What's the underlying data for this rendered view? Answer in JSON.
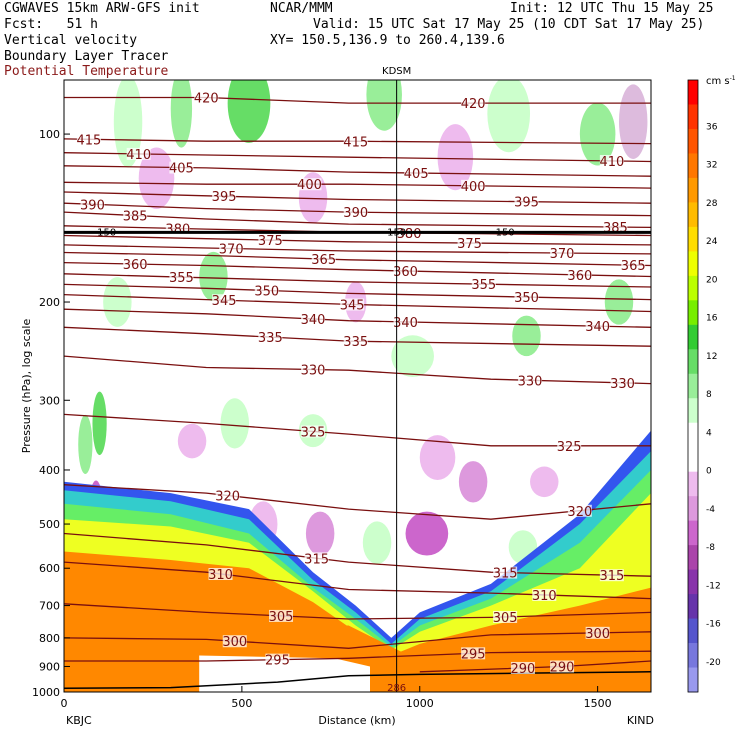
{
  "header": {
    "model": "CGWAVES 15km ARW-GFS init",
    "center": "NCAR/MMM",
    "init": "Init: 12 UTC Thu 15 May 25",
    "fcst": "Fcst:   51 h",
    "valid": "Valid: 15 UTC Sat 17 May 25 (10 CDT Sat 17 May 25)",
    "field1": "Vertical velocity",
    "field2": "Boundary Layer Tracer",
    "field3": "Potential Temperature",
    "xy": "XY= 150.5,136.9 to 260.4,139.6"
  },
  "colors": {
    "theta": "#7a0f0f",
    "bl_tracer": "#ff8c00"
  },
  "chart_data": {
    "type": "heatmap",
    "title": "",
    "xlabel": "Distance (km)",
    "ylabel": "Pressure (hPa), log scale",
    "xlim": [
      0,
      1650
    ],
    "ylim": [
      1000,
      80
    ],
    "y_scale": "log",
    "x_ticks": [
      0,
      500,
      1000,
      1500
    ],
    "x_tick_labels": [
      "0",
      "500",
      "1000",
      "1500"
    ],
    "y_ticks": [
      100,
      200,
      300,
      400,
      500,
      600,
      700,
      800,
      900,
      1000
    ],
    "y_tick_labels": [
      "100",
      "200",
      "300",
      "400",
      "500",
      "600",
      "700",
      "800",
      "900",
      "1000"
    ],
    "left_station": "KBJC",
    "right_station": "KIND",
    "marker_station": "KDSM",
    "marker_x": 935,
    "tropopause_label": "150",
    "tropopause_p": 150,
    "surface_label": "286",
    "colorbar": {
      "unit": "cm s",
      "unit_exp": "-1",
      "ticks": [
        "36",
        "32",
        "28",
        "24",
        "20",
        "16",
        "12",
        "8",
        "4",
        "0",
        "-4",
        "-8",
        "-12",
        "-16",
        "-20"
      ],
      "colors": [
        "#ff0000",
        "#ff3300",
        "#ff5500",
        "#ff7700",
        "#ff9900",
        "#ffbb00",
        "#ffdd00",
        "#eeff00",
        "#bbff00",
        "#77ee00",
        "#33cc33",
        "#66dd66",
        "#99ee99",
        "#ccffcc",
        "#ffffff",
        "#ffffff",
        "#eebbee",
        "#dd99dd",
        "#cc66cc",
        "#aa44aa",
        "#8833aa",
        "#6633aa",
        "#5555cc",
        "#7777dd",
        "#9999ee"
      ]
    },
    "isentropes": [
      {
        "label": "420",
        "points": [
          [
            0,
            86
          ],
          [
            400,
            86
          ],
          [
            800,
            88
          ],
          [
            1650,
            88
          ]
        ],
        "label_x": [
          400,
          1150
        ]
      },
      {
        "label": "415",
        "points": [
          [
            0,
            102
          ],
          [
            400,
            103
          ],
          [
            800,
            103
          ],
          [
            1650,
            104
          ]
        ],
        "label_x": [
          70,
          820
        ]
      },
      {
        "label": "410",
        "points": [
          [
            0,
            108
          ],
          [
            400,
            109
          ],
          [
            800,
            110
          ],
          [
            1650,
            112
          ]
        ],
        "label_x": [
          210,
          1540
        ]
      },
      {
        "label": "405",
        "points": [
          [
            0,
            114
          ],
          [
            400,
            115
          ],
          [
            800,
            117
          ],
          [
            1650,
            119
          ]
        ],
        "label_x": [
          330,
          990
        ]
      },
      {
        "label": "400",
        "points": [
          [
            0,
            122
          ],
          [
            400,
            123
          ],
          [
            800,
            123
          ],
          [
            1650,
            125
          ]
        ],
        "label_x": [
          690,
          1150
        ]
      },
      {
        "label": "395",
        "points": [
          [
            0,
            127
          ],
          [
            400,
            129
          ],
          [
            800,
            131
          ],
          [
            1650,
            133
          ]
        ],
        "label_x": [
          450,
          1300
        ]
      },
      {
        "label": "390",
        "points": [
          [
            0,
            133
          ],
          [
            400,
            136
          ],
          [
            800,
            138
          ],
          [
            1650,
            140
          ]
        ],
        "label_x": [
          80,
          820
        ]
      },
      {
        "label": "385",
        "points": [
          [
            0,
            138
          ],
          [
            400,
            142
          ],
          [
            800,
            145
          ],
          [
            1650,
            147
          ]
        ],
        "label_x": [
          200,
          1550
        ]
      },
      {
        "label": "380",
        "points": [
          [
            0,
            146
          ],
          [
            400,
            148
          ],
          [
            800,
            150
          ],
          [
            1650,
            152
          ]
        ],
        "label_x": [
          320,
          970
        ]
      },
      {
        "label": "375",
        "points": [
          [
            0,
            152
          ],
          [
            400,
            154
          ],
          [
            800,
            156
          ],
          [
            1650,
            158
          ]
        ],
        "label_x": [
          580,
          1140
        ]
      },
      {
        "label": "370",
        "points": [
          [
            0,
            158
          ],
          [
            400,
            160
          ],
          [
            800,
            162
          ],
          [
            1650,
            164
          ]
        ],
        "label_x": [
          470,
          1400
        ]
      },
      {
        "label": "365",
        "points": [
          [
            0,
            163
          ],
          [
            400,
            165
          ],
          [
            800,
            168
          ],
          [
            1650,
            172
          ]
        ],
        "label_x": [
          730,
          1600
        ]
      },
      {
        "label": "360",
        "points": [
          [
            0,
            170
          ],
          [
            400,
            172
          ],
          [
            800,
            175
          ],
          [
            1650,
            180
          ]
        ],
        "label_x": [
          200,
          960,
          1450
        ]
      },
      {
        "label": "355",
        "points": [
          [
            0,
            178
          ],
          [
            400,
            181
          ],
          [
            800,
            184
          ],
          [
            1650,
            188
          ]
        ],
        "label_x": [
          330,
          1180
        ]
      },
      {
        "label": "350",
        "points": [
          [
            0,
            186
          ],
          [
            400,
            189
          ],
          [
            800,
            193
          ],
          [
            1650,
            198
          ]
        ],
        "label_x": [
          570,
          1300
        ]
      },
      {
        "label": "345",
        "points": [
          [
            0,
            194
          ],
          [
            400,
            198
          ],
          [
            800,
            202
          ],
          [
            1650,
            208
          ]
        ],
        "label_x": [
          450,
          810
        ]
      },
      {
        "label": "340",
        "points": [
          [
            0,
            206
          ],
          [
            400,
            210
          ],
          [
            800,
            216
          ],
          [
            1650,
            222
          ]
        ],
        "label_x": [
          700,
          960,
          1500
        ]
      },
      {
        "label": "335",
        "points": [
          [
            0,
            222
          ],
          [
            400,
            228
          ],
          [
            800,
            235
          ],
          [
            1650,
            240
          ]
        ],
        "label_x": [
          580,
          820
        ]
      },
      {
        "label": "330",
        "points": [
          [
            0,
            250
          ],
          [
            400,
            262
          ],
          [
            800,
            265
          ],
          [
            1200,
            275
          ],
          [
            1650,
            280
          ]
        ],
        "label_x": [
          700,
          1310,
          1570
        ]
      },
      {
        "label": "325",
        "points": [
          [
            0,
            318
          ],
          [
            400,
            330
          ],
          [
            800,
            345
          ],
          [
            1200,
            362
          ],
          [
            1650,
            362
          ]
        ],
        "label_x": [
          700,
          1420
        ]
      },
      {
        "label": "320",
        "points": [
          [
            0,
            425
          ],
          [
            400,
            440
          ],
          [
            800,
            470
          ],
          [
            1200,
            490
          ],
          [
            1650,
            460
          ]
        ],
        "label_x": [
          460,
          1450
        ]
      },
      {
        "label": "315",
        "points": [
          [
            0,
            520
          ],
          [
            400,
            545
          ],
          [
            800,
            585
          ],
          [
            1200,
            610
          ],
          [
            1650,
            620
          ]
        ],
        "label_x": [
          710,
          1240,
          1540
        ]
      },
      {
        "label": "310",
        "points": [
          [
            0,
            585
          ],
          [
            400,
            610
          ],
          [
            800,
            655
          ],
          [
            1200,
            665
          ],
          [
            1650,
            680
          ]
        ],
        "label_x": [
          440,
          1350
        ]
      },
      {
        "label": "305",
        "points": [
          [
            0,
            695
          ],
          [
            400,
            720
          ],
          [
            800,
            740
          ],
          [
            1200,
            735
          ],
          [
            1650,
            720
          ]
        ],
        "label_x": [
          610,
          1240
        ]
      },
      {
        "label": "300",
        "points": [
          [
            0,
            800
          ],
          [
            400,
            805
          ],
          [
            800,
            835
          ],
          [
            1200,
            790
          ],
          [
            1650,
            780
          ]
        ],
        "label_x": [
          480,
          1500
        ]
      },
      {
        "label": "295",
        "points": [
          [
            0,
            880
          ],
          [
            400,
            880
          ],
          [
            800,
            870
          ],
          [
            1200,
            850
          ],
          [
            1650,
            845
          ]
        ],
        "label_x": [
          600,
          1150
        ]
      },
      {
        "label": "290",
        "points": [
          [
            1000,
            920
          ],
          [
            1400,
            900
          ],
          [
            1650,
            880
          ]
        ],
        "label_x": [
          1290,
          1400
        ]
      }
    ]
  }
}
